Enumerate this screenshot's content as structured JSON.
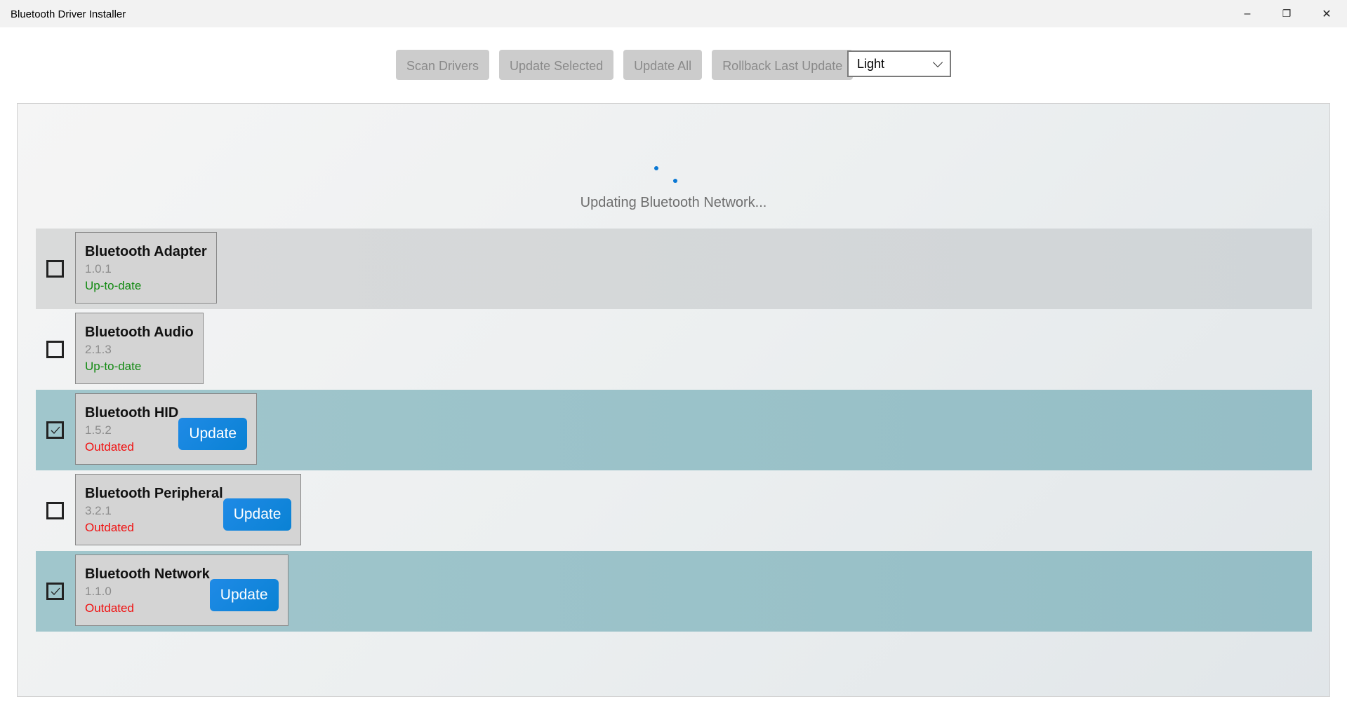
{
  "window": {
    "title": "Bluetooth Driver Installer",
    "controls": [
      "minimize",
      "restore",
      "close"
    ]
  },
  "toolbar": {
    "buttons": [
      "Scan Drivers",
      "Update Selected",
      "Update All",
      "Rollback Last Update"
    ],
    "theme_select": "Light",
    "disabled": true
  },
  "status": {
    "text": "Updating Bluetooth Network...",
    "spinner": "loading-dots",
    "accent": "#0a78d4"
  },
  "drivers": [
    {
      "name": "Bluetooth Adapter",
      "version": "1.0.1",
      "status": "Up-to-date",
      "checked": false,
      "update_label": null
    },
    {
      "name": "Bluetooth Audio",
      "version": "2.1.3",
      "status": "Up-to-date",
      "checked": false,
      "update_label": null
    },
    {
      "name": "Bluetooth HID",
      "version": "1.5.2",
      "status": "Outdated",
      "checked": true,
      "update_label": "Update"
    },
    {
      "name": "Bluetooth Peripheral",
      "version": "3.2.1",
      "status": "Outdated",
      "checked": false,
      "update_label": "Update"
    },
    {
      "name": "Bluetooth Network",
      "version": "1.1.0",
      "status": "Outdated",
      "checked": true,
      "update_label": "Update"
    }
  ],
  "colors": {
    "up_to_date": "#128a12",
    "outdated": "#f01010",
    "selected_row": "#9fc5cc",
    "update_button": "#1a88e0"
  }
}
